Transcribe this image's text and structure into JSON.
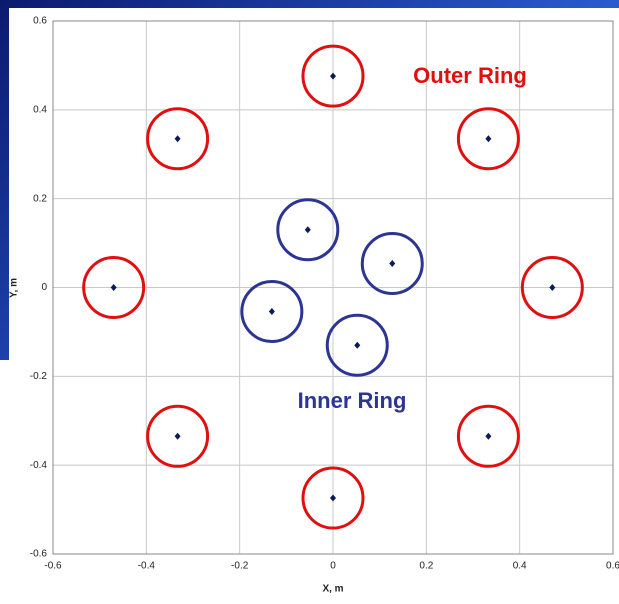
{
  "chart_data": {
    "type": "scatter",
    "xlabel": "X, m",
    "ylabel": "Y, m",
    "xlim": [
      -0.6,
      0.6
    ],
    "ylim": [
      -0.6,
      0.6
    ],
    "xticks": [
      -0.6,
      -0.4,
      -0.2,
      0,
      0.2,
      0.4,
      0.6
    ],
    "yticks": [
      -0.6,
      -0.4,
      -0.2,
      0,
      0.2,
      0.4,
      0.6
    ],
    "grid": true,
    "marker_color": "#0a1a5c",
    "series": [
      {
        "name": "Outer Ring",
        "color": "#e01010",
        "x": [
          0,
          0.333,
          0.47,
          0.333,
          0,
          -0.333,
          -0.47,
          -0.333
        ],
        "values": [
          0.476,
          0.335,
          0,
          -0.335,
          -0.474,
          -0.335,
          0,
          0.335
        ]
      },
      {
        "name": "Inner Ring",
        "color": "#2c3594",
        "x": [
          -0.054,
          0.127,
          0.052,
          -0.131
        ],
        "values": [
          0.13,
          0.054,
          -0.13,
          -0.054
        ]
      }
    ]
  }
}
